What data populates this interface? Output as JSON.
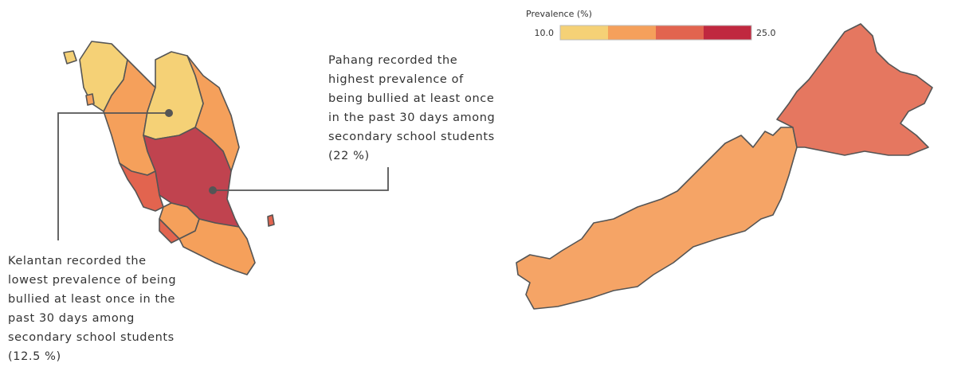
{
  "legend": {
    "title": "Prevalence (%)",
    "lim": [
      10,
      25
    ],
    "ticks": [
      {
        "value": 10,
        "label": "10.0"
      },
      {
        "value": 25,
        "label": "25.0"
      }
    ],
    "colors": [
      "#f5d176",
      "#f5a05b",
      "#e2644f",
      "#c0283f"
    ]
  },
  "annotations": [
    {
      "lines": [
        "Pahang recorded the",
        "highest prevalence of",
        "being bullied at least once",
        "in the past 30 days among",
        "secondary school students",
        "(22 %)"
      ]
    },
    {
      "lines": [
        "Kelantan recorded the",
        "lowest prevalence of being",
        "bullied at least once in the",
        "past 30 days among",
        "secondary school students",
        "(12.5 %)"
      ]
    }
  ]
}
